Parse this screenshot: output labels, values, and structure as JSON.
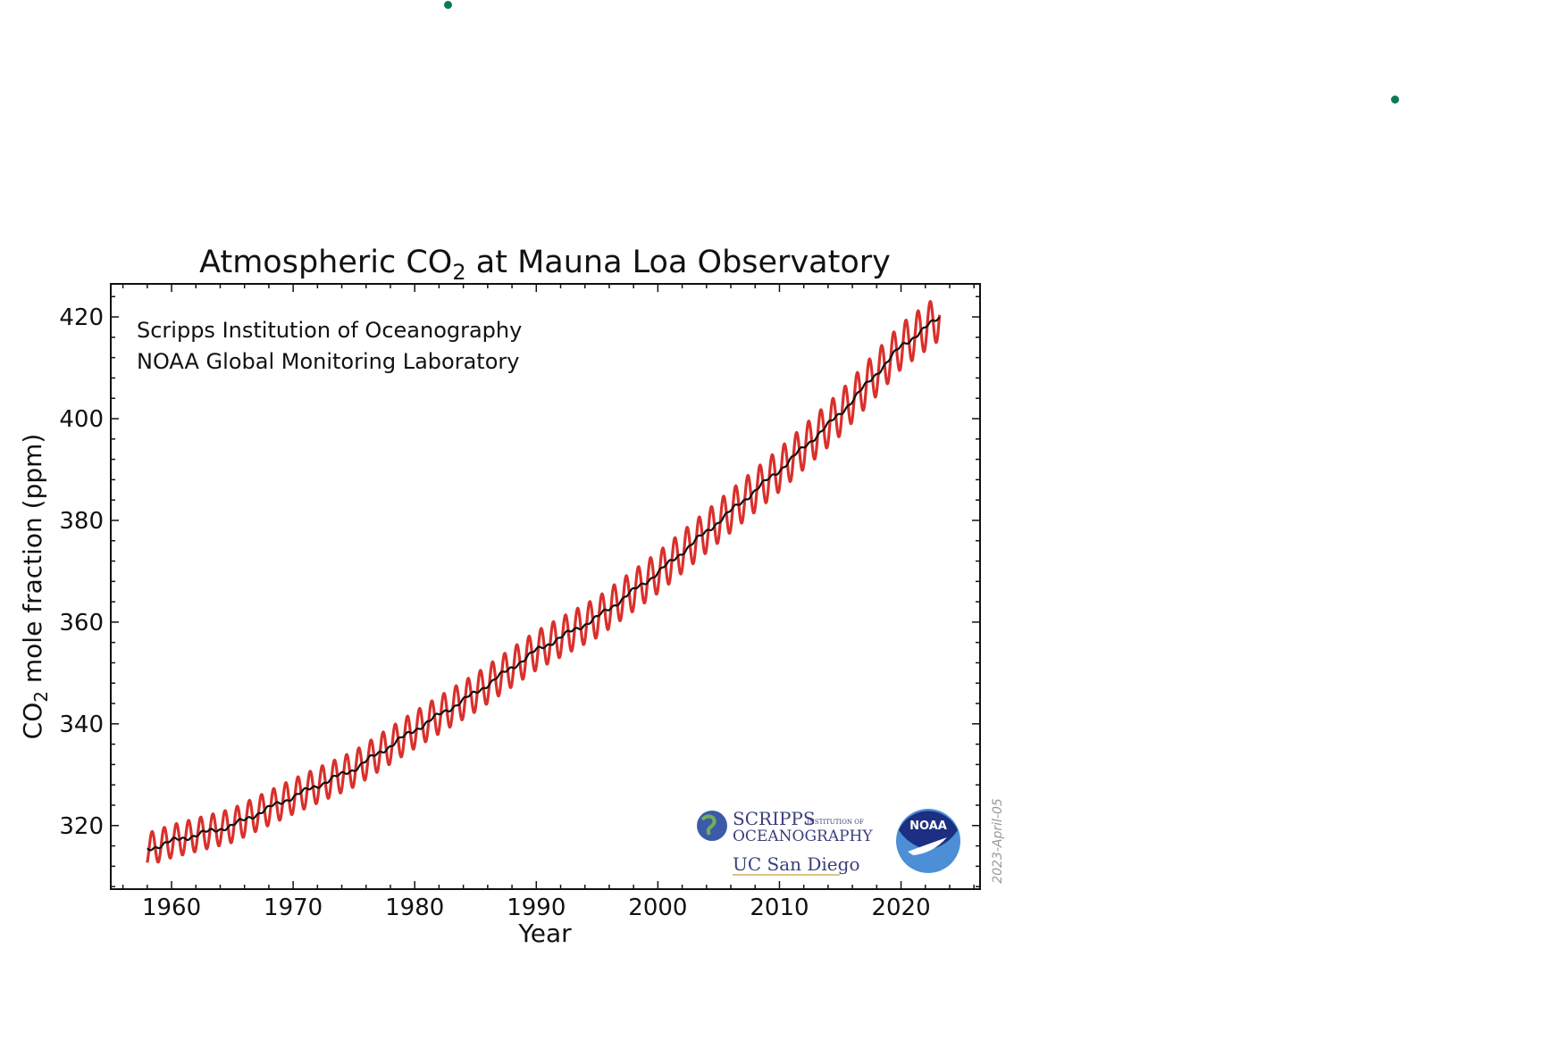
{
  "page": {
    "background": "#ffffff",
    "marker_color": "#0a7a5a"
  },
  "chart_data": {
    "type": "line",
    "title_prefix": "Atmospheric CO",
    "title_sub": "2",
    "title_suffix": " at Mauna Loa Observatory",
    "xlabel": "Year",
    "ylabel_prefix": "CO",
    "ylabel_sub": "2",
    "ylabel_suffix": " mole fraction (ppm)",
    "xlim": [
      1955,
      2026.5
    ],
    "ylim": [
      307.5,
      426.5
    ],
    "xticks": [
      1960,
      1970,
      1980,
      1990,
      2000,
      2010,
      2020
    ],
    "yticks": [
      320,
      340,
      360,
      380,
      400,
      420
    ],
    "credits": [
      "Scripps Institution of Oceanography",
      "NOAA Global Monitoring Laboratory"
    ],
    "date_stamp": "2023-April-05",
    "logos": {
      "scripps_line1": "SCRIPPS",
      "scripps_small": "INSTITUTION OF",
      "scripps_line2": "OCEANOGRAPHY",
      "ucsd": "UC San Diego",
      "noaa": "NOAA"
    },
    "seasonal_amplitude_ppm": 3.2,
    "series": [
      {
        "role": "monthly",
        "color": "#d9302c",
        "x": [
          1958,
          1960,
          1965,
          1970,
          1975,
          1980,
          1985,
          1990,
          1995,
          2000,
          2005,
          2010,
          2015,
          2020,
          2023.2
        ],
        "values": [
          315.3,
          316.9,
          320.0,
          325.7,
          331.1,
          338.8,
          346.1,
          354.4,
          360.9,
          369.7,
          379.8,
          389.9,
          401.0,
          414.2,
          420.0
        ]
      },
      {
        "role": "trend",
        "color": "#111111",
        "x": [
          1958,
          1960,
          1965,
          1970,
          1975,
          1980,
          1985,
          1990,
          1995,
          2000,
          2005,
          2010,
          2015,
          2020,
          2023.2
        ],
        "values": [
          315.3,
          316.9,
          320.0,
          325.7,
          331.1,
          338.8,
          346.1,
          354.4,
          360.9,
          369.7,
          379.8,
          389.9,
          401.0,
          414.2,
          420.0
        ]
      }
    ]
  }
}
